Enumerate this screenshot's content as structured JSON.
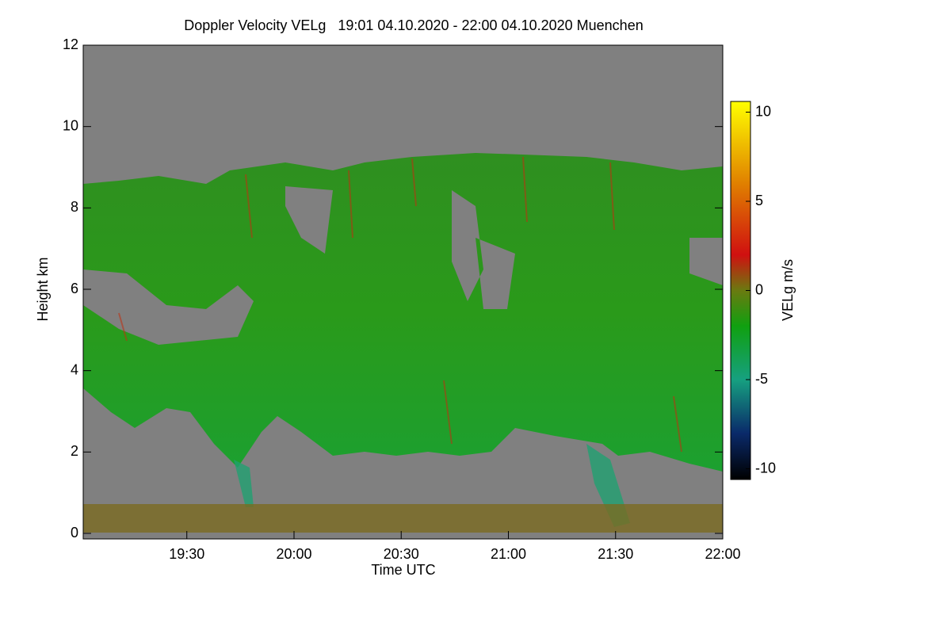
{
  "chart_data": {
    "type": "heatmap",
    "title": "Doppler Velocity VELg   19:01 04.10.2020 - 22:00 04.10.2020 Muenchen",
    "x_label": "Time UTC",
    "y_label": "Height km",
    "colorbar_label": "VELg m/s",
    "xlim": [
      19.0167,
      22.0
    ],
    "xticks": [
      {
        "value": 19.5,
        "label": "19:30"
      },
      {
        "value": 20.0,
        "label": "20:00"
      },
      {
        "value": 20.5,
        "label": "20:30"
      },
      {
        "value": 21.0,
        "label": "21:00"
      },
      {
        "value": 21.5,
        "label": "21:30"
      },
      {
        "value": 22.0,
        "label": "22:00"
      }
    ],
    "ylim": [
      0,
      12
    ],
    "yticks": [
      0,
      2,
      4,
      6,
      8,
      10,
      12
    ],
    "clim": [
      -10.6,
      10.6
    ],
    "cticks": [
      -10,
      -5,
      0,
      5,
      10
    ],
    "colormap": [
      {
        "value": -10.6,
        "color": "#000000"
      },
      {
        "value": -8,
        "color": "#0a2a6a"
      },
      {
        "value": -5,
        "color": "#16a080"
      },
      {
        "value": -2,
        "color": "#10a010"
      },
      {
        "value": 0,
        "color": "#6a7a10"
      },
      {
        "value": 2,
        "color": "#d01010"
      },
      {
        "value": 6,
        "color": "#e08000"
      },
      {
        "value": 10.6,
        "color": "#ffff00"
      }
    ],
    "missing_color": "#808080"
  }
}
